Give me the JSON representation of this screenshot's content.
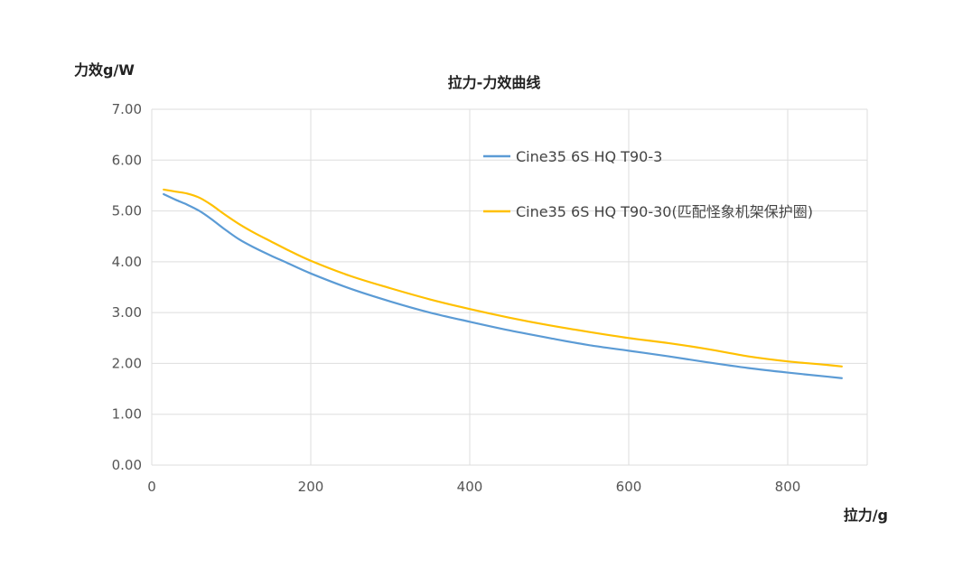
{
  "chart_data": {
    "type": "line",
    "title": "拉力-力效曲线",
    "xlabel": "拉力/g",
    "ylabel": "力效g/W",
    "xlim": [
      0,
      900
    ],
    "ylim": [
      0,
      7
    ],
    "x_ticks": [
      "0",
      "200",
      "400",
      "600",
      "800"
    ],
    "y_ticks": [
      "0.00",
      "1.00",
      "2.00",
      "3.00",
      "4.00",
      "5.00",
      "6.00",
      "7.00"
    ],
    "grid": true,
    "legend_position": "upper-right-inside",
    "series": [
      {
        "name": "Cine35 6S HQ T90-3",
        "color": "#5b9bd5",
        "x": [
          15,
          30,
          45,
          60,
          75,
          90,
          110,
          130,
          150,
          170,
          200,
          250,
          300,
          350,
          400,
          450,
          500,
          550,
          600,
          650,
          700,
          750,
          800,
          850,
          868
        ],
        "y": [
          5.33,
          5.22,
          5.12,
          5.0,
          4.84,
          4.66,
          4.44,
          4.27,
          4.12,
          3.98,
          3.77,
          3.47,
          3.22,
          3.0,
          2.82,
          2.65,
          2.5,
          2.36,
          2.25,
          2.14,
          2.02,
          1.91,
          1.82,
          1.74,
          1.71
        ]
      },
      {
        "name": "Cine35 6S HQ T90-30(匹配怪象机架保护圈)",
        "color": "#ffc000",
        "x": [
          15,
          30,
          45,
          60,
          75,
          90,
          110,
          130,
          150,
          170,
          200,
          250,
          300,
          350,
          400,
          450,
          500,
          550,
          600,
          650,
          700,
          750,
          800,
          850,
          868
        ],
        "y": [
          5.42,
          5.38,
          5.34,
          5.26,
          5.12,
          4.95,
          4.74,
          4.56,
          4.4,
          4.24,
          4.02,
          3.72,
          3.48,
          3.26,
          3.07,
          2.9,
          2.75,
          2.62,
          2.5,
          2.4,
          2.28,
          2.14,
          2.04,
          1.97,
          1.94
        ]
      }
    ]
  }
}
